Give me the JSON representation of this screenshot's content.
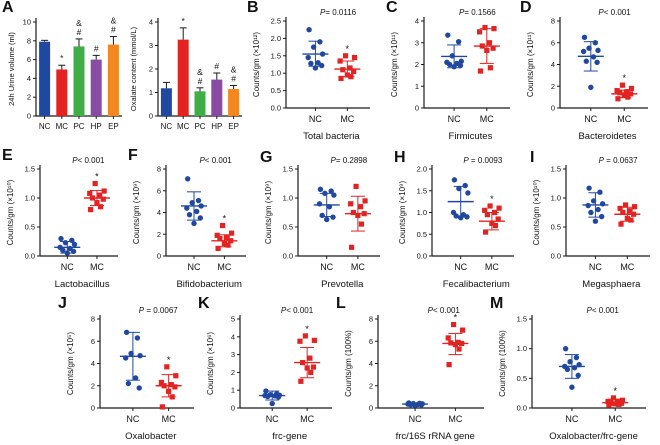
{
  "accent_colors": {
    "nc_blue": "#2148a0",
    "mc_red": "#e32322",
    "pc_green": "#3fae47",
    "hp_purple": "#8a4ba5",
    "ep_orange": "#f6861f"
  },
  "chart_data": [
    {
      "panel": "A",
      "type": "bar",
      "categories": [
        "NC",
        "MC",
        "PC",
        "HP",
        "EP"
      ],
      "values": [
        7.9,
        4.95,
        7.4,
        6.0,
        7.6
      ],
      "errors": [
        0.15,
        0.45,
        0.8,
        0.45,
        0.85
      ],
      "annotations": [
        [],
        [
          "*"
        ],
        [
          "#",
          "&"
        ],
        [
          "#"
        ],
        [
          "#",
          "&"
        ]
      ],
      "colors": [
        "#2148a0",
        "#e32322",
        "#3fae47",
        "#8a4ba5",
        "#f6861f"
      ],
      "ylabel": "24h Urine volume (ml)",
      "ylim": [
        0,
        10
      ],
      "yticks": [
        0,
        2,
        4,
        6,
        8,
        10
      ],
      "ytick_labels": [
        "0",
        "2",
        "4",
        "6",
        "8",
        "10"
      ]
    },
    {
      "panel": "A",
      "type": "bar",
      "categories": [
        "NC",
        "MC",
        "PC",
        "HP",
        "EP"
      ],
      "values": [
        1.18,
        3.25,
        1.05,
        1.55,
        1.15
      ],
      "errors": [
        0.25,
        0.5,
        0.15,
        0.28,
        0.15
      ],
      "annotations": [
        [],
        [
          "*"
        ],
        [
          "#",
          "&"
        ],
        [
          "#"
        ],
        [
          "#",
          "&"
        ]
      ],
      "colors": [
        "#2148a0",
        "#e32322",
        "#3fae47",
        "#8a4ba5",
        "#f6861f"
      ],
      "ylabel": "Oxalate content (mmol/L)",
      "ylim": [
        0,
        4
      ],
      "yticks": [
        0,
        1,
        2,
        3,
        4
      ],
      "ytick_labels": [
        "0",
        "1",
        "2",
        "3",
        "4"
      ]
    },
    {
      "panel": "B",
      "type": "scatter",
      "p_label": "P= 0.0116",
      "xlabel": "Total bacteria",
      "ylabel": "Counts/gm (×10¹²)",
      "ylim": [
        0,
        2.5
      ],
      "yticks": [
        0,
        0.5,
        1.0,
        1.5,
        2.0,
        2.5
      ],
      "ytick_labels": [
        "0.0",
        "0.5",
        "1.0",
        "1.5",
        "2.0",
        "2.5"
      ],
      "groups": [
        {
          "name": "NC",
          "color": "#2148a0",
          "marker": "circle",
          "mean": 1.55,
          "sd_low": 1.2,
          "sd_high": 1.92,
          "points": [
            2.25,
            1.9,
            1.75,
            1.55,
            1.45,
            1.3,
            1.28,
            1.22,
            1.15
          ]
        },
        {
          "name": "MC",
          "color": "#e32322",
          "marker": "square",
          "mean": 1.12,
          "sd_low": 0.9,
          "sd_high": 1.35,
          "sig": "*",
          "points": [
            1.5,
            1.45,
            1.35,
            1.15,
            1.1,
            1.05,
            0.95,
            0.9,
            0.85
          ]
        }
      ]
    },
    {
      "panel": "C",
      "type": "scatter",
      "p_label": "P= 0.1566",
      "xlabel": "Firmicutes",
      "ylabel": "Counts/gm (×10¹¹)",
      "ylim": [
        0,
        4
      ],
      "yticks": [
        0,
        1,
        2,
        3,
        4
      ],
      "ytick_labels": [
        "0",
        "1",
        "2",
        "3",
        "4"
      ],
      "groups": [
        {
          "name": "NC",
          "color": "#2148a0",
          "marker": "circle",
          "mean": 2.37,
          "sd_low": 1.85,
          "sd_high": 2.9,
          "points": [
            3.35,
            3.05,
            2.4,
            2.15,
            2.1,
            2.05,
            2.0,
            1.95,
            1.9
          ]
        },
        {
          "name": "MC",
          "color": "#e32322",
          "marker": "square",
          "mean": 2.85,
          "sd_low": 2.05,
          "sd_high": 3.65,
          "points": [
            3.7,
            3.65,
            3.5,
            3.0,
            2.85,
            2.75,
            2.65,
            1.85,
            1.7
          ]
        }
      ]
    },
    {
      "panel": "D",
      "type": "scatter",
      "p_label": "P< 0.001",
      "xlabel": "Bacteroidetes",
      "ylabel": "Counts/gm (×10¹¹)",
      "ylim": [
        0,
        8
      ],
      "yticks": [
        0,
        2,
        4,
        6,
        8
      ],
      "ytick_labels": [
        "0",
        "2",
        "4",
        "6",
        "8"
      ],
      "groups": [
        {
          "name": "NC",
          "color": "#2148a0",
          "marker": "circle",
          "mean": 4.75,
          "sd_low": 3.4,
          "sd_high": 6.1,
          "points": [
            6.5,
            6.0,
            5.5,
            5.3,
            5.2,
            4.7,
            4.3,
            4.2,
            1.9
          ]
        },
        {
          "name": "MC",
          "color": "#e32322",
          "marker": "square",
          "mean": 1.3,
          "sd_low": 0.95,
          "sd_high": 1.65,
          "sig": "*",
          "points": [
            2.1,
            1.8,
            1.6,
            1.5,
            1.4,
            1.3,
            1.2,
            1.0,
            0.85
          ]
        }
      ]
    },
    {
      "panel": "E",
      "type": "scatter",
      "p_label": "P< 0.001",
      "xlabel": "Lactobacillus",
      "ylabel": "Counts/gm (×10¹⁰)",
      "ylim": [
        0,
        1.5
      ],
      "yticks": [
        0,
        0.5,
        1.0,
        1.5
      ],
      "ytick_labels": [
        "0.0",
        "0.5",
        "1.0",
        "1.5"
      ],
      "groups": [
        {
          "name": "NC",
          "color": "#2148a0",
          "marker": "circle",
          "mean": 0.15,
          "sd_low": 0.05,
          "sd_high": 0.25,
          "points": [
            0.3,
            0.27,
            0.23,
            0.2,
            0.15,
            0.13,
            0.1,
            0.08,
            0.05
          ]
        },
        {
          "name": "MC",
          "color": "#e32322",
          "marker": "square",
          "mean": 1.0,
          "sd_low": 0.87,
          "sd_high": 1.13,
          "sig": "*",
          "points": [
            1.25,
            1.12,
            1.08,
            1.05,
            1.0,
            0.98,
            0.92,
            0.85,
            0.8
          ]
        }
      ]
    },
    {
      "panel": "F",
      "type": "scatter",
      "p_label": "P< 0.001",
      "xlabel": "Bifidobacterium",
      "ylabel": "Counts/gm (×10⁹)",
      "ylim": [
        0,
        8
      ],
      "yticks": [
        0,
        2,
        4,
        6,
        8
      ],
      "ytick_labels": [
        "0",
        "2",
        "4",
        "6",
        "8"
      ],
      "groups": [
        {
          "name": "NC",
          "color": "#2148a0",
          "marker": "circle",
          "mean": 4.6,
          "sd_low": 3.3,
          "sd_high": 5.9,
          "points": [
            7.1,
            5.1,
            4.9,
            4.6,
            4.4,
            4.1,
            3.8,
            3.5,
            3.0
          ]
        },
        {
          "name": "MC",
          "color": "#e32322",
          "marker": "square",
          "mean": 1.4,
          "sd_low": 0.85,
          "sd_high": 1.95,
          "sig": "*",
          "points": [
            2.8,
            2.1,
            1.9,
            1.7,
            1.6,
            1.4,
            1.15,
            1.0,
            0.7
          ]
        }
      ]
    },
    {
      "panel": "G",
      "type": "scatter",
      "p_label": "P= 0.2898",
      "xlabel": "Prevotella",
      "ylabel": "Counts/gm (×10⁹)",
      "ylim": [
        0,
        1.5
      ],
      "yticks": [
        0,
        0.5,
        1.0,
        1.5
      ],
      "ytick_labels": [
        "0.0",
        "0.5",
        "1.0",
        "1.5"
      ],
      "groups": [
        {
          "name": "NC",
          "color": "#2148a0",
          "marker": "circle",
          "mean": 0.88,
          "sd_low": 0.68,
          "sd_high": 1.08,
          "points": [
            1.15,
            1.12,
            1.08,
            1.05,
            0.9,
            0.85,
            0.7,
            0.67,
            0.63
          ]
        },
        {
          "name": "MC",
          "color": "#e32322",
          "marker": "square",
          "mean": 0.73,
          "sd_low": 0.43,
          "sd_high": 1.03,
          "points": [
            1.2,
            0.95,
            0.9,
            0.85,
            0.75,
            0.73,
            0.7,
            0.55,
            0.15
          ]
        }
      ]
    },
    {
      "panel": "H",
      "type": "scatter",
      "p_label": "P = 0.0093",
      "xlabel": "Fecalibacterium",
      "ylabel": "Counts/gm (×10⁹)",
      "ylim": [
        0,
        2.0
      ],
      "yticks": [
        0,
        0.5,
        1.0,
        1.5,
        2.0
      ],
      "ytick_labels": [
        "0.0",
        "0.5",
        "1.0",
        "1.5",
        "2.0"
      ],
      "groups": [
        {
          "name": "NC",
          "color": "#2148a0",
          "marker": "circle",
          "mean": 1.25,
          "sd_low": 0.9,
          "sd_high": 1.6,
          "points": [
            1.75,
            1.62,
            1.55,
            1.45,
            1.0,
            0.95,
            0.92,
            0.9,
            0.88
          ]
        },
        {
          "name": "MC",
          "color": "#e32322",
          "marker": "square",
          "mean": 0.8,
          "sd_low": 0.6,
          "sd_high": 1.0,
          "sig": "*",
          "points": [
            1.15,
            1.1,
            1.05,
            1.0,
            0.95,
            0.85,
            0.75,
            0.7,
            0.55
          ]
        }
      ]
    },
    {
      "panel": "I",
      "type": "scatter",
      "p_label": "P = 0.0637",
      "xlabel": "Megasphaera",
      "ylabel": "Counts/gm (×10¹⁰)",
      "ylim": [
        0,
        1.5
      ],
      "yticks": [
        0,
        0.5,
        1.0,
        1.5
      ],
      "ytick_labels": [
        "0.0",
        "0.5",
        "1.0",
        "1.5"
      ],
      "groups": [
        {
          "name": "NC",
          "color": "#2148a0",
          "marker": "circle",
          "mean": 0.88,
          "sd_low": 0.67,
          "sd_high": 1.09,
          "points": [
            1.17,
            1.1,
            0.95,
            0.9,
            0.87,
            0.8,
            0.75,
            0.68,
            0.6
          ]
        },
        {
          "name": "MC",
          "color": "#e32322",
          "marker": "square",
          "mean": 0.72,
          "sd_low": 0.6,
          "sd_high": 0.84,
          "points": [
            0.88,
            0.85,
            0.82,
            0.78,
            0.75,
            0.72,
            0.65,
            0.62,
            0.55
          ]
        }
      ]
    },
    {
      "panel": "J",
      "type": "scatter",
      "p_label": "P = 0.0067",
      "xlabel": "Oxalobacter",
      "ylabel": "Counts/gm (×10⁵)",
      "ylim": [
        0,
        8
      ],
      "yticks": [
        0,
        2,
        4,
        6,
        8
      ],
      "ytick_labels": [
        "0",
        "2",
        "4",
        "6",
        "8"
      ],
      "groups": [
        {
          "name": "NC",
          "color": "#2148a0",
          "marker": "circle",
          "mean": 4.65,
          "sd_low": 2.5,
          "sd_high": 6.8,
          "points": [
            6.8,
            6.3,
            4.9,
            4.7,
            4.5,
            2.7,
            2.2,
            1.8
          ]
        },
        {
          "name": "MC",
          "color": "#e32322",
          "marker": "square",
          "mean": 2.0,
          "sd_low": 1.0,
          "sd_high": 3.0,
          "sig": "*",
          "points": [
            3.7,
            2.9,
            2.3,
            2.1,
            2.0,
            1.9,
            1.5,
            1.0,
            0.1
          ]
        }
      ]
    },
    {
      "panel": "K",
      "type": "scatter",
      "p_label": "P< 0.001",
      "xlabel": "frc-gene",
      "ylabel": "Counts/gm (×10⁶)",
      "ylim": [
        0,
        5
      ],
      "yticks": [
        0,
        1,
        2,
        3,
        4,
        5
      ],
      "ytick_labels": [
        "0",
        "1",
        "2",
        "3",
        "4",
        "5"
      ],
      "groups": [
        {
          "name": "NC",
          "color": "#2148a0",
          "marker": "circle",
          "mean": 0.7,
          "sd_low": 0.45,
          "sd_high": 0.95,
          "points": [
            0.95,
            0.8,
            0.75,
            0.72,
            0.7,
            0.68,
            0.65,
            0.62,
            0.25
          ]
        },
        {
          "name": "MC",
          "color": "#e32322",
          "marker": "square",
          "mean": 2.55,
          "sd_low": 1.7,
          "sd_high": 3.4,
          "sig": "*",
          "points": [
            4.05,
            3.8,
            3.75,
            2.8,
            2.55,
            2.3,
            2.25,
            2.0,
            1.5
          ]
        }
      ]
    },
    {
      "panel": "L",
      "type": "scatter",
      "p_label": "P< 0.001",
      "xlabel": "frc/16S rRNA gene",
      "ylabel": "Counts/gm (100%)",
      "ylim": [
        0,
        8
      ],
      "yticks": [
        0,
        2,
        4,
        6,
        8
      ],
      "ytick_labels": [
        "0",
        "2",
        "4",
        "6",
        "8"
      ],
      "groups": [
        {
          "name": "NC",
          "color": "#2148a0",
          "marker": "circle",
          "mean": 0.35,
          "sd_low": 0.25,
          "sd_high": 0.45,
          "points": [
            0.45,
            0.42,
            0.4,
            0.38,
            0.35,
            0.32,
            0.3,
            0.28,
            0.25
          ]
        },
        {
          "name": "MC",
          "color": "#e32322",
          "marker": "square",
          "mean": 5.8,
          "sd_low": 4.8,
          "sd_high": 6.7,
          "sig": "*",
          "points": [
            7.5,
            7.0,
            6.3,
            5.9,
            5.85,
            5.8,
            5.7,
            5.3,
            3.9
          ]
        }
      ]
    },
    {
      "panel": "M",
      "type": "scatter",
      "p_label": "P< 0.001",
      "xlabel": "Oxalobacter/frc-gene",
      "ylabel": "Counts/gm (100%)",
      "ylim": [
        0,
        1.5
      ],
      "yticks": [
        0,
        0.5,
        1.0,
        1.5
      ],
      "ytick_labels": [
        "0.0",
        "0.5",
        "1.0",
        "1.5"
      ],
      "groups": [
        {
          "name": "NC",
          "color": "#2148a0",
          "marker": "circle",
          "mean": 0.7,
          "sd_low": 0.5,
          "sd_high": 0.9,
          "points": [
            1.0,
            0.85,
            0.78,
            0.73,
            0.7,
            0.68,
            0.65,
            0.55,
            0.35
          ]
        },
        {
          "name": "MC",
          "color": "#e32322",
          "marker": "square",
          "mean": 0.09,
          "sd_low": 0.04,
          "sd_high": 0.15,
          "sig": "*",
          "points": [
            0.17,
            0.13,
            0.11,
            0.1,
            0.09,
            0.08,
            0.07,
            0.06,
            0.05
          ]
        }
      ]
    }
  ]
}
